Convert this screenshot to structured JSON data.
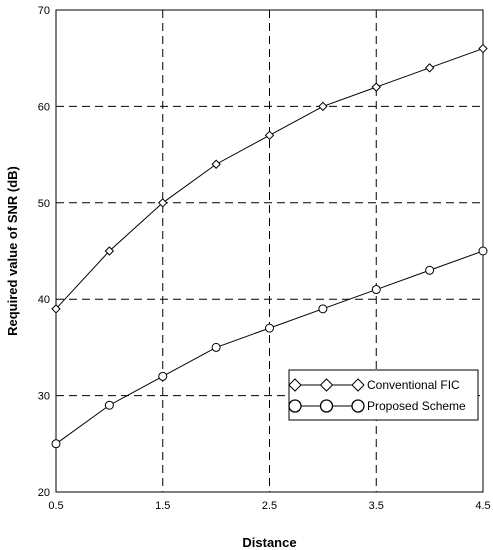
{
  "chart_data": {
    "type": "line",
    "xlabel": "Distance",
    "ylabel": "Required value of SNR (dB)",
    "xlim": [
      0.5,
      4.5
    ],
    "ylim": [
      20,
      70
    ],
    "x_ticks": [
      0.5,
      1.5,
      2.5,
      3.5,
      4.5
    ],
    "x_tick_labels": [
      "0.5",
      "1.5",
      "2.5",
      "3.5",
      "4.5"
    ],
    "y_ticks": [
      20,
      30,
      40,
      50,
      60,
      70
    ],
    "y_tick_labels": [
      "20",
      "30",
      "40",
      "50",
      "60",
      "70"
    ],
    "grid": true,
    "grid_style": "dashed",
    "legend_position": "lower-right",
    "x": [
      0.5,
      1.0,
      1.5,
      2.0,
      2.5,
      3.0,
      3.5,
      4.0,
      4.5
    ],
    "series": [
      {
        "name": "Conventional FIC",
        "marker": "diamond",
        "color": "#000000",
        "values": [
          39,
          45,
          50,
          54,
          57,
          60,
          62,
          64,
          66
        ]
      },
      {
        "name": "Proposed Scheme",
        "marker": "circle",
        "color": "#000000",
        "values": [
          25,
          29,
          32,
          35,
          37,
          39,
          41,
          43,
          45
        ]
      }
    ]
  }
}
